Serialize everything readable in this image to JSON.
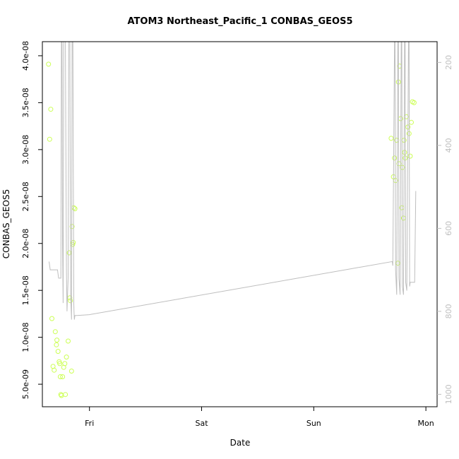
{
  "chart_data": {
    "type": "scatter",
    "title": "ATOM3 Northeast_Pacific_1 CONBAS_GEOS5",
    "xlabel": "Date",
    "ylabel": "CONBAS_GEOS5",
    "x_units": "days",
    "xlim": [
      -0.42,
      3.1
    ],
    "ylim": [
      2.6e-09,
      4.15e-08
    ],
    "x_ticks": [
      {
        "value": 0,
        "label": "Fri"
      },
      {
        "value": 1,
        "label": "Sat"
      },
      {
        "value": 2,
        "label": "Sun"
      },
      {
        "value": 3,
        "label": "Mon"
      }
    ],
    "y_ticks": [
      {
        "value": 5e-09,
        "label": "5.0e-09"
      },
      {
        "value": 1e-08,
        "label": "1.0e-08"
      },
      {
        "value": 1.5e-08,
        "label": "1.5e-08"
      },
      {
        "value": 2e-08,
        "label": "2.0e-08"
      },
      {
        "value": 2.5e-08,
        "label": "2.5e-08"
      },
      {
        "value": 3e-08,
        "label": "3.0e-08"
      },
      {
        "value": 3.5e-08,
        "label": "3.5e-08"
      },
      {
        "value": 4e-08,
        "label": "4.0e-08"
      }
    ],
    "y2lim": [
      1030,
      150
    ],
    "y2_ticks": [
      {
        "value": 200,
        "label": "200"
      },
      {
        "value": 400,
        "label": "400"
      },
      {
        "value": 600,
        "label": "600"
      },
      {
        "value": 800,
        "label": "800"
      },
      {
        "value": 1000,
        "label": "1000"
      }
    ],
    "series": [
      {
        "type": "scatter",
        "color": "#ccff55",
        "points": [
          [
            -0.365,
            3.91e-08
          ],
          [
            -0.345,
            3.43e-08
          ],
          [
            -0.355,
            3.11e-08
          ],
          [
            -0.335,
            1.2e-08
          ],
          [
            -0.325,
            6.9e-09
          ],
          [
            -0.315,
            6.5e-09
          ],
          [
            -0.305,
            1.06e-08
          ],
          [
            -0.295,
            9.2e-09
          ],
          [
            -0.29,
            9.7e-09
          ],
          [
            -0.28,
            8.5e-09
          ],
          [
            -0.27,
            7.4e-09
          ],
          [
            -0.265,
            7.2e-09
          ],
          [
            -0.26,
            5.8e-09
          ],
          [
            -0.255,
            3.9e-09
          ],
          [
            -0.25,
            3.8e-09
          ],
          [
            -0.24,
            5.8e-09
          ],
          [
            -0.23,
            6.8e-09
          ],
          [
            -0.22,
            7.2e-09
          ],
          [
            -0.215,
            3.9e-09
          ],
          [
            -0.205,
            7.9e-09
          ],
          [
            -0.19,
            9.6e-09
          ],
          [
            -0.18,
            1.9e-08
          ],
          [
            -0.175,
            1.42e-08
          ],
          [
            -0.17,
            1.39e-08
          ],
          [
            -0.16,
            6.4e-09
          ],
          [
            -0.155,
            2.18e-08
          ],
          [
            -0.15,
            1.99e-08
          ],
          [
            -0.145,
            2.01e-08
          ],
          [
            -0.14,
            2.38e-08
          ],
          [
            -0.13,
            2.37e-08
          ],
          [
            2.69,
            3.12e-08
          ],
          [
            2.71,
            2.71e-08
          ],
          [
            2.72,
            2.91e-08
          ],
          [
            2.73,
            2.67e-08
          ],
          [
            2.74,
            3.1e-08
          ],
          [
            2.75,
            1.79e-08
          ],
          [
            2.755,
            3.72e-08
          ],
          [
            2.76,
            2.85e-08
          ],
          [
            2.765,
            3.89e-08
          ],
          [
            2.775,
            3.33e-08
          ],
          [
            2.785,
            2.38e-08
          ],
          [
            2.79,
            2.81e-08
          ],
          [
            2.8,
            2.27e-08
          ],
          [
            2.805,
            3.1e-08
          ],
          [
            2.81,
            2.97e-08
          ],
          [
            2.815,
            2.91e-08
          ],
          [
            2.825,
            3.35e-08
          ],
          [
            2.84,
            3.24e-08
          ],
          [
            2.85,
            3.17e-08
          ],
          [
            2.86,
            2.93e-08
          ],
          [
            2.87,
            3.29e-08
          ],
          [
            2.88,
            3.51e-08
          ],
          [
            2.895,
            3.5e-08
          ]
        ]
      },
      {
        "type": "line",
        "axis": "right",
        "color": "#bebebe",
        "points": [
          [
            -0.36,
            680
          ],
          [
            -0.35,
            700
          ],
          [
            -0.3,
            700
          ],
          [
            -0.285,
            700
          ],
          [
            -0.275,
            720
          ],
          [
            -0.255,
            720
          ],
          [
            -0.25,
            150
          ],
          [
            -0.245,
            150
          ],
          [
            -0.24,
            640
          ],
          [
            -0.235,
            780
          ],
          [
            -0.23,
            150
          ],
          [
            -0.215,
            150
          ],
          [
            -0.205,
            700
          ],
          [
            -0.2,
            800
          ],
          [
            -0.19,
            720
          ],
          [
            -0.185,
            150
          ],
          [
            -0.175,
            150
          ],
          [
            -0.168,
            760
          ],
          [
            -0.16,
            820
          ],
          [
            -0.155,
            150
          ],
          [
            -0.148,
            150
          ],
          [
            -0.14,
            780
          ],
          [
            -0.138,
            800
          ],
          [
            -0.135,
            820
          ],
          [
            -0.13,
            810
          ],
          [
            -0.12,
            810
          ],
          [
            -0.11,
            810
          ],
          [
            0.0,
            808
          ],
          [
            2.7,
            680
          ],
          [
            2.705,
            690
          ],
          [
            2.72,
            150
          ],
          [
            2.725,
            150
          ],
          [
            2.73,
            700
          ],
          [
            2.74,
            760
          ],
          [
            2.75,
            150
          ],
          [
            2.755,
            150
          ],
          [
            2.76,
            720
          ],
          [
            2.77,
            760
          ],
          [
            2.78,
            150
          ],
          [
            2.785,
            150
          ],
          [
            2.79,
            740
          ],
          [
            2.8,
            760
          ],
          [
            2.81,
            150
          ],
          [
            2.815,
            150
          ],
          [
            2.82,
            730
          ],
          [
            2.83,
            750
          ],
          [
            2.845,
            150
          ],
          [
            2.85,
            150
          ],
          [
            2.855,
            740
          ],
          [
            2.86,
            730
          ],
          [
            2.87,
            730
          ],
          [
            2.875,
            730
          ],
          [
            2.88,
            730
          ],
          [
            2.9,
            730
          ],
          [
            2.91,
            510
          ]
        ]
      }
    ]
  }
}
